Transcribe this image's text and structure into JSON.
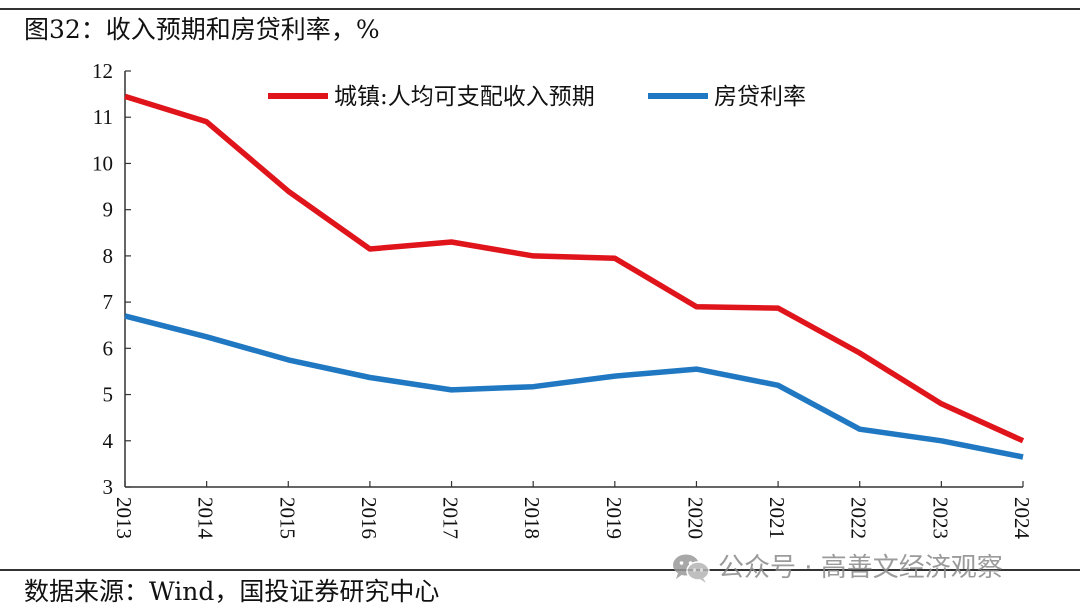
{
  "figure": {
    "title": "图32：收入预期和房贷利率，%",
    "source": "数据来源：Wind，国投证券研究中心",
    "watermark": {
      "icon": "wechat-icon",
      "text": "公众号 · 高善文经济观察"
    }
  },
  "chart_data": {
    "type": "line",
    "title": "收入预期和房贷利率，%",
    "xlabel": "",
    "ylabel": "",
    "categories": [
      "2013",
      "2014",
      "2015",
      "2016",
      "2017",
      "2018",
      "2019",
      "2020",
      "2021",
      "2022",
      "2023",
      "2024"
    ],
    "ylim": [
      3,
      12
    ],
    "yticks": [
      3,
      4,
      5,
      6,
      7,
      8,
      9,
      10,
      11,
      12
    ],
    "grid": false,
    "legend_position": "top",
    "series": [
      {
        "name": "城镇:人均可支配收入预期",
        "color": "#e0141b",
        "values": [
          11.45,
          10.9,
          9.4,
          8.15,
          8.3,
          8.0,
          7.95,
          6.9,
          6.87,
          5.9,
          4.8,
          4.0
        ]
      },
      {
        "name": "房贷利率",
        "color": "#1f78c1",
        "values": [
          6.7,
          6.25,
          5.75,
          5.37,
          5.1,
          5.17,
          5.4,
          5.55,
          5.2,
          4.25,
          4.0,
          3.65
        ]
      }
    ]
  }
}
